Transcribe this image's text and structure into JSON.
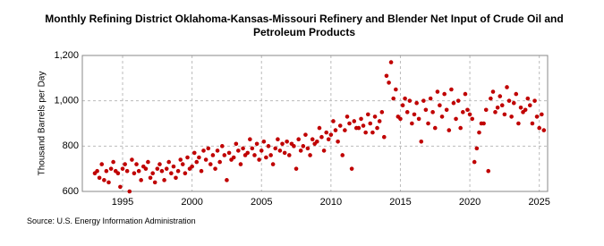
{
  "chart_data": {
    "type": "scatter",
    "title": "Monthly Refining District Oklahoma-Kansas-Missouri Refinery and Blender Net Input of Crude Oil and Petroleum Products",
    "y_label": "Thousand Barrels per Day",
    "source": "Source: U.S. Energy Information Administration",
    "xlim": [
      1992.1,
      2025.6
    ],
    "xticks": [
      1995,
      2000,
      2005,
      2010,
      2015,
      2020,
      2025
    ],
    "ylim": [
      600,
      1200
    ],
    "yticks": [
      600,
      800,
      {
        "value": 1000,
        "label": "1,000"
      },
      {
        "value": 1200,
        "label": "1,200"
      }
    ],
    "grid": true,
    "color": "#c00000",
    "x": [
      1993,
      1993.17,
      1993.33,
      1993.5,
      1993.67,
      1993.83,
      1994,
      1994.17,
      1994.33,
      1994.5,
      1994.67,
      1994.83,
      1995,
      1995.17,
      1995.33,
      1995.5,
      1995.67,
      1995.83,
      1996,
      1996.17,
      1996.33,
      1996.5,
      1996.67,
      1996.83,
      1997,
      1997.17,
      1997.33,
      1997.5,
      1997.67,
      1997.83,
      1998,
      1998.17,
      1998.33,
      1998.5,
      1998.67,
      1998.83,
      1999,
      1999.17,
      1999.33,
      1999.5,
      1999.67,
      1999.83,
      2000,
      2000.17,
      2000.33,
      2000.5,
      2000.67,
      2000.83,
      2001,
      2001.17,
      2001.33,
      2001.5,
      2001.67,
      2001.83,
      2002,
      2002.17,
      2002.33,
      2002.5,
      2002.67,
      2002.83,
      2003,
      2003.17,
      2003.33,
      2003.5,
      2003.67,
      2003.83,
      2004,
      2004.17,
      2004.33,
      2004.5,
      2004.67,
      2004.83,
      2005,
      2005.17,
      2005.33,
      2005.5,
      2005.67,
      2005.83,
      2006,
      2006.17,
      2006.33,
      2006.5,
      2006.67,
      2006.83,
      2007,
      2007.17,
      2007.33,
      2007.5,
      2007.67,
      2007.83,
      2008,
      2008.17,
      2008.33,
      2008.5,
      2008.67,
      2008.83,
      2009,
      2009.17,
      2009.33,
      2009.5,
      2009.67,
      2009.83,
      2010,
      2010.17,
      2010.33,
      2010.5,
      2010.67,
      2010.83,
      2011,
      2011.17,
      2011.33,
      2011.5,
      2011.67,
      2011.83,
      2012,
      2012.17,
      2012.33,
      2012.5,
      2012.67,
      2012.83,
      2013,
      2013.17,
      2013.33,
      2013.5,
      2013.67,
      2013.83,
      2014,
      2014.17,
      2014.33,
      2014.5,
      2014.67,
      2014.83,
      2015,
      2015.17,
      2015.33,
      2015.5,
      2015.67,
      2015.83,
      2016,
      2016.17,
      2016.33,
      2016.5,
      2016.67,
      2016.83,
      2017,
      2017.17,
      2017.33,
      2017.5,
      2017.67,
      2017.83,
      2018,
      2018.17,
      2018.33,
      2018.5,
      2018.67,
      2018.83,
      2019,
      2019.17,
      2019.33,
      2019.5,
      2019.67,
      2019.83,
      2020,
      2020.17,
      2020.33,
      2020.5,
      2020.67,
      2020.83,
      2021,
      2021.17,
      2021.33,
      2021.5,
      2021.67,
      2021.83,
      2022,
      2022.17,
      2022.33,
      2022.5,
      2022.67,
      2022.83,
      2023,
      2023.17,
      2023.33,
      2023.5,
      2023.67,
      2023.83,
      2024,
      2024.17,
      2024.33,
      2024.5,
      2024.67,
      2024.83,
      2025,
      2025.17,
      2025.33
    ],
    "values": [
      680,
      690,
      660,
      720,
      650,
      690,
      640,
      700,
      730,
      690,
      680,
      620,
      700,
      720,
      690,
      600,
      740,
      680,
      720,
      690,
      650,
      710,
      700,
      730,
      660,
      680,
      640,
      700,
      720,
      690,
      650,
      700,
      730,
      680,
      710,
      660,
      690,
      740,
      720,
      680,
      750,
      700,
      710,
      770,
      730,
      750,
      690,
      780,
      740,
      790,
      720,
      760,
      700,
      780,
      730,
      800,
      760,
      650,
      770,
      740,
      750,
      810,
      780,
      720,
      790,
      760,
      770,
      830,
      790,
      760,
      810,
      740,
      780,
      820,
      750,
      800,
      760,
      720,
      790,
      830,
      780,
      810,
      770,
      820,
      760,
      810,
      800,
      700,
      830,
      780,
      800,
      850,
      790,
      760,
      830,
      810,
      820,
      880,
      840,
      780,
      860,
      830,
      850,
      910,
      870,
      820,
      890,
      760,
      870,
      930,
      900,
      700,
      910,
      880,
      880,
      920,
      890,
      860,
      940,
      900,
      860,
      930,
      880,
      910,
      950,
      840,
      1110,
      1080,
      1170,
      1010,
      1050,
      930,
      920,
      980,
      1010,
      950,
      1000,
      900,
      940,
      990,
      920,
      820,
      1000,
      960,
      900,
      1010,
      950,
      880,
      1040,
      980,
      930,
      1030,
      960,
      870,
      1050,
      990,
      920,
      1000,
      880,
      950,
      1030,
      960,
      940,
      920,
      730,
      790,
      860,
      900,
      900,
      960,
      690,
      1010,
      1040,
      950,
      970,
      1020,
      980,
      940,
      1060,
      1000,
      930,
      990,
      1030,
      900,
      970,
      950,
      960,
      1010,
      980,
      900,
      1000,
      930,
      880,
      940,
      870
    ]
  }
}
